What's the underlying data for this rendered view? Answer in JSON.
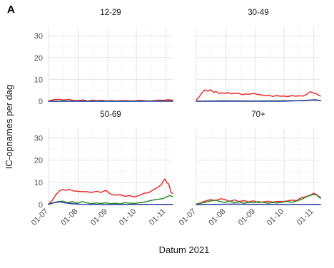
{
  "figure": {
    "panel_label": "A",
    "y_title": "IC-opnames per dag",
    "x_title": "Datum 2021"
  },
  "chart_data": {
    "type": "line",
    "panel_label": "A",
    "xlabel": "Datum 2021",
    "ylabel": "IC-opnames per dag",
    "xticks": [
      "01-07",
      "01-08",
      "01-09",
      "01-10",
      "01-11"
    ],
    "x_tick_days": [
      0,
      31,
      62,
      92,
      123
    ],
    "xlim_days": [
      0,
      130
    ],
    "ylim": [
      0,
      34
    ],
    "yticks": [
      0,
      10,
      20,
      30
    ],
    "grid": true,
    "legend": "none",
    "series_colors": [
      "#e8312a",
      "#2e8b2e",
      "#2a3b9e"
    ],
    "facets": [
      {
        "title": "12-29",
        "series": [
          {
            "color": "#e8312a",
            "x": [
              0,
              6,
              11,
              16,
              21,
              26,
              31,
              36,
              41,
              46,
              51,
              56,
              61,
              66,
              71,
              76,
              81,
              86,
              91,
              96,
              101,
              106,
              111,
              116,
              121,
              125,
              130
            ],
            "y": [
              0.1,
              0.8,
              0.9,
              0.5,
              0.9,
              0.4,
              0.3,
              0.6,
              0.1,
              0.5,
              0.2,
              0.4,
              0.1,
              0.3,
              0.1,
              0.2,
              0.3,
              0.1,
              0.2,
              0.4,
              0.2,
              0.1,
              0.3,
              0.5,
              0.4,
              0.7,
              0.5
            ]
          },
          {
            "color": "#2e8b2e",
            "x": [
              0,
              20,
              40,
              60,
              80,
              100,
              120,
              130
            ],
            "y": [
              0,
              0.1,
              0,
              0.1,
              0,
              0.1,
              0.1,
              0.2
            ]
          },
          {
            "color": "#2a3b9e",
            "x": [
              0,
              130
            ],
            "y": [
              0,
              0
            ]
          }
        ]
      },
      {
        "title": "30-49",
        "series": [
          {
            "color": "#e8312a",
            "x": [
              0,
              3,
              6,
              9,
              12,
              15,
              18,
              21,
              24,
              27,
              30,
              33,
              36,
              40,
              44,
              48,
              52,
              56,
              60,
              64,
              68,
              72,
              76,
              80,
              84,
              88,
              92,
              96,
              100,
              104,
              108,
              112,
              116,
              118,
              120,
              122,
              124,
              126,
              128,
              130
            ],
            "y": [
              0.5,
              2.0,
              3.8,
              5.2,
              4.6,
              5.3,
              4.1,
              4.4,
              3.5,
              3.9,
              3.6,
              4.0,
              3.4,
              3.6,
              3.7,
              3.0,
              3.3,
              3.2,
              3.6,
              3.1,
              2.9,
              2.5,
              2.7,
              2.2,
              2.6,
              2.3,
              2.4,
              2.1,
              2.6,
              2.3,
              2.5,
              2.4,
              3.2,
              4.0,
              4.3,
              3.9,
              3.6,
              3.5,
              2.8,
              2.4
            ]
          },
          {
            "color": "#2e8b2e",
            "x": [
              0,
              30,
              60,
              90,
              110,
              120,
              130
            ],
            "y": [
              0,
              0.2,
              0.1,
              0.2,
              0.3,
              0.6,
              0.4
            ]
          },
          {
            "color": "#2a3b9e",
            "x": [
              0,
              90,
              118,
              124,
              130
            ],
            "y": [
              0,
              0,
              0.4,
              0.7,
              0.3
            ]
          }
        ]
      },
      {
        "title": "50-69",
        "series": [
          {
            "color": "#e8312a",
            "x": [
              0,
              4,
              8,
              12,
              15,
              18,
              22,
              26,
              30,
              35,
              40,
              45,
              50,
              55,
              60,
              65,
              70,
              75,
              80,
              85,
              90,
              95,
              100,
              105,
              110,
              115,
              118,
              120,
              122,
              124,
              126,
              127,
              128,
              130
            ],
            "y": [
              0.3,
              2.0,
              4.6,
              6.3,
              6.8,
              6.4,
              6.9,
              6.1,
              6.0,
              5.8,
              5.8,
              5.4,
              6.0,
              5.5,
              6.4,
              4.7,
              4.2,
              4.5,
              3.7,
              4.0,
              3.4,
              4.1,
              5.1,
              5.4,
              6.7,
              8.0,
              8.9,
              10.5,
              11.5,
              9.8,
              9.2,
              7.5,
              5.6,
              4.9
            ]
          },
          {
            "color": "#2e8b2e",
            "x": [
              0,
              5,
              10,
              15,
              20,
              25,
              30,
              35,
              40,
              45,
              50,
              55,
              60,
              65,
              70,
              75,
              80,
              85,
              90,
              95,
              100,
              105,
              110,
              115,
              120,
              124,
              127,
              130
            ],
            "y": [
              0.2,
              0.8,
              1.3,
              1.5,
              0.9,
              1.3,
              0.6,
              1.3,
              0.8,
              0.4,
              0.7,
              0.5,
              0.8,
              0.4,
              0.6,
              0.3,
              0.9,
              0.6,
              0.5,
              0.8,
              1.1,
              1.6,
              2.1,
              2.4,
              2.7,
              3.5,
              4.1,
              3.5
            ]
          },
          {
            "color": "#2a3b9e",
            "x": [
              0,
              6,
              12,
              18,
              25,
              35,
              60,
              90,
              130
            ],
            "y": [
              0.1,
              0.9,
              1.2,
              0.7,
              0.4,
              0.1,
              0,
              0.1,
              0.1
            ]
          }
        ]
      },
      {
        "title": "70+",
        "series": [
          {
            "color": "#e8312a",
            "x": [
              0,
              5,
              10,
              15,
              20,
              25,
              30,
              35,
              40,
              45,
              50,
              55,
              60,
              65,
              70,
              75,
              80,
              85,
              90,
              95,
              100,
              105,
              110,
              115,
              120,
              123,
              126,
              128,
              130
            ],
            "y": [
              0.2,
              0.8,
              1.7,
              2.2,
              1.8,
              2.6,
              2.3,
              1.4,
              2.1,
              1.3,
              1.8,
              1.2,
              1.7,
              0.9,
              1.2,
              1.5,
              1.1,
              1.4,
              1.3,
              1.6,
              2.0,
              1.8,
              3.1,
              3.6,
              4.4,
              5.1,
              4.5,
              3.8,
              3.4
            ]
          },
          {
            "color": "#2e8b2e",
            "x": [
              0,
              5,
              10,
              15,
              20,
              25,
              30,
              35,
              40,
              45,
              50,
              55,
              60,
              65,
              70,
              75,
              80,
              85,
              90,
              95,
              100,
              105,
              110,
              115,
              120,
              123,
              126,
              128,
              130
            ],
            "y": [
              0.1,
              0.6,
              1.1,
              1.6,
              2.0,
              1.3,
              1.0,
              1.6,
              0.8,
              1.2,
              0.6,
              1.0,
              0.8,
              1.3,
              1.0,
              0.6,
              0.9,
              0.7,
              1.1,
              1.4,
              1.0,
              1.6,
              2.3,
              3.4,
              4.2,
              4.6,
              4.3,
              3.5,
              2.8
            ]
          },
          {
            "color": "#2a3b9e",
            "x": [
              0,
              20,
              40,
              60,
              90,
              130
            ],
            "y": [
              0,
              0.1,
              0.2,
              0.1,
              0,
              0.1
            ]
          }
        ]
      }
    ]
  }
}
